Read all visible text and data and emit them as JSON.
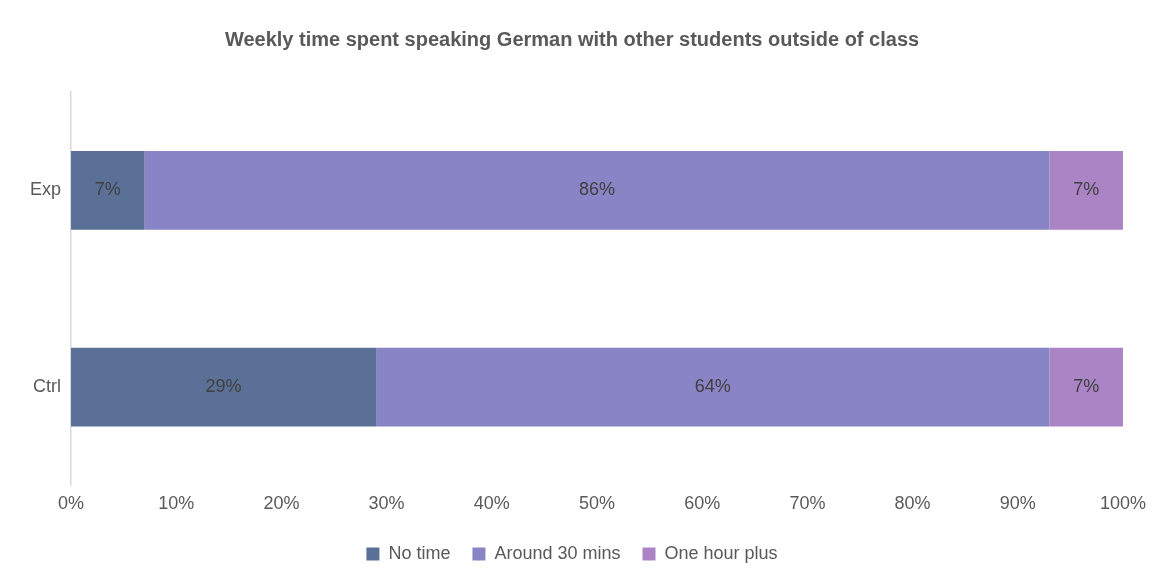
{
  "chart_data": {
    "type": "bar",
    "orientation": "horizontal",
    "stacked": true,
    "title": "Weekly time spent speaking German with other students outside of class",
    "categories": [
      "Exp",
      "Ctrl"
    ],
    "series": [
      {
        "name": "No time",
        "color": "#5b7096",
        "values": [
          7,
          29
        ],
        "value_labels": [
          "7%",
          "29%"
        ]
      },
      {
        "name": "Around 30 mins",
        "color": "#8884c6",
        "values": [
          86,
          64
        ],
        "value_labels": [
          "86%",
          "64%"
        ]
      },
      {
        "name": "One hour plus",
        "color": "#ab84c6",
        "values": [
          7,
          7
        ],
        "value_labels": [
          "7%",
          "7%"
        ]
      }
    ],
    "xlim": [
      0,
      100
    ],
    "xticks": [
      {
        "value": 0,
        "label": "0%"
      },
      {
        "value": 10,
        "label": "10%"
      },
      {
        "value": 20,
        "label": "20%"
      },
      {
        "value": 30,
        "label": "30%"
      },
      {
        "value": 40,
        "label": "40%"
      },
      {
        "value": 50,
        "label": "50%"
      },
      {
        "value": 60,
        "label": "60%"
      },
      {
        "value": 70,
        "label": "70%"
      },
      {
        "value": 80,
        "label": "80%"
      },
      {
        "value": 90,
        "label": "90%"
      },
      {
        "value": 100,
        "label": "100%"
      }
    ],
    "grid": false,
    "legend": "bottom"
  }
}
